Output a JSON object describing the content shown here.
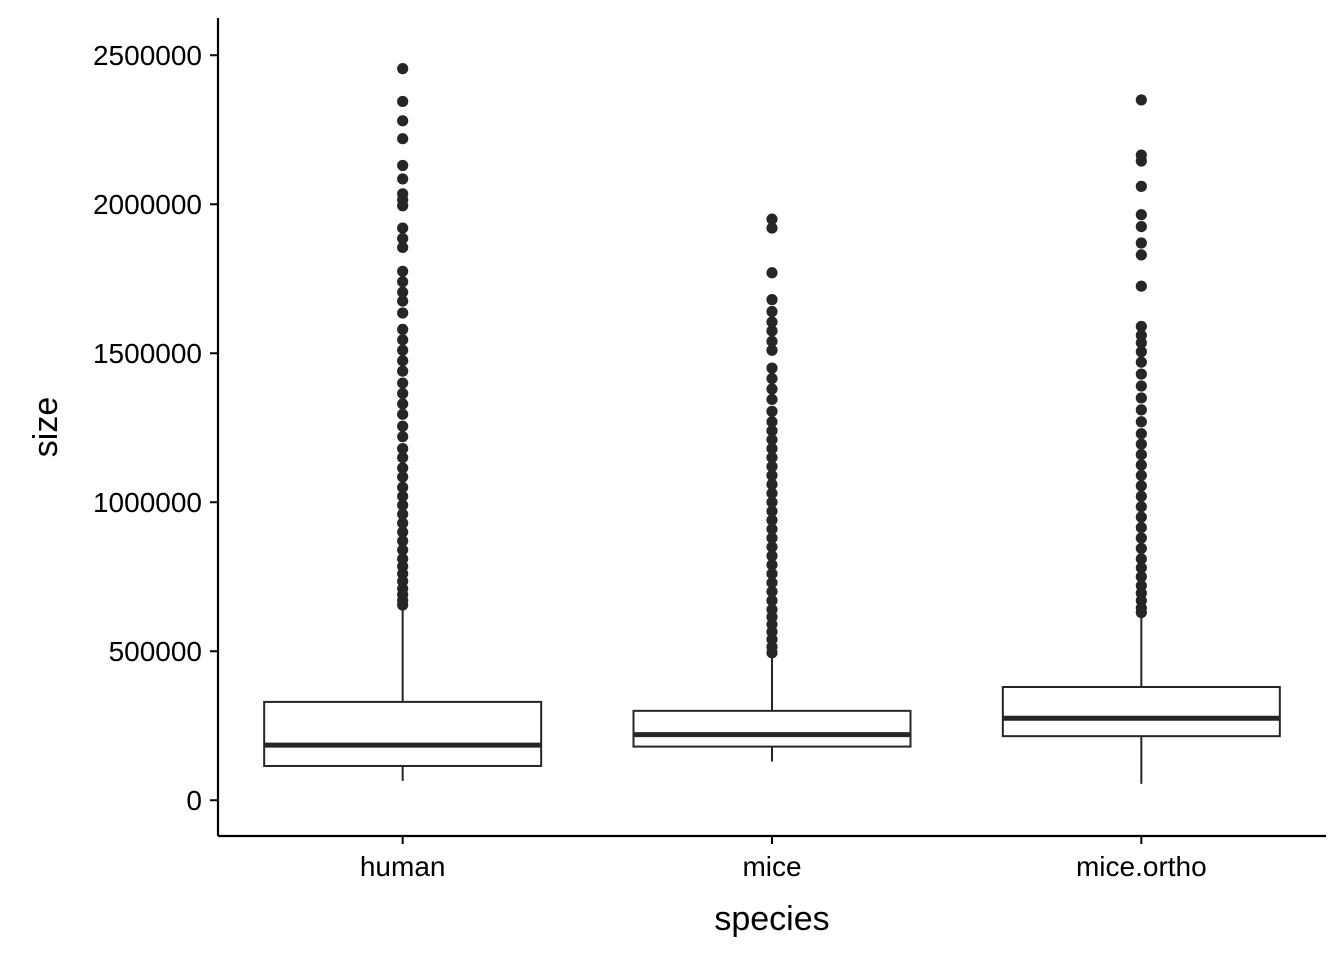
{
  "chart_data": {
    "type": "boxplot",
    "xlabel": "species",
    "ylabel": "size",
    "ylim": [
      -120000,
      2625000
    ],
    "yticks": [
      0,
      500000,
      1000000,
      1500000,
      2000000,
      2500000
    ],
    "ytick_labels": [
      "0",
      "500000",
      "1000000",
      "1500000",
      "2000000",
      "2500000"
    ],
    "categories": [
      "human",
      "mice",
      "mice.ortho"
    ],
    "grid": false,
    "legend": "none",
    "colors": {
      "box_fill": "#ffffff",
      "line": "#262626",
      "point": "#262626"
    },
    "boxes": [
      {
        "category": "human",
        "whisker_low": 65000,
        "q1": 115000,
        "median": 185000,
        "q3": 330000,
        "whisker_high": 645000,
        "outliers": [
          2455000,
          2345000,
          2280000,
          2220000,
          2130000,
          2085000,
          2035000,
          2015000,
          1995000,
          1920000,
          1885000,
          1855000,
          1775000,
          1740000,
          1705000,
          1675000,
          1635000,
          1580000,
          1545000,
          1510000,
          1475000,
          1440000,
          1400000,
          1365000,
          1330000,
          1295000,
          1255000,
          1220000,
          1180000,
          1150000,
          1115000,
          1085000,
          1050000,
          1020000,
          990000,
          960000,
          930000,
          900000,
          870000,
          840000,
          810000,
          785000,
          760000,
          735000,
          710000,
          690000,
          670000,
          655000
        ]
      },
      {
        "category": "mice",
        "whisker_low": 130000,
        "q1": 180000,
        "median": 220000,
        "q3": 300000,
        "whisker_high": 485000,
        "outliers": [
          1950000,
          1920000,
          1770000,
          1680000,
          1640000,
          1605000,
          1575000,
          1540000,
          1510000,
          1450000,
          1415000,
          1380000,
          1345000,
          1305000,
          1270000,
          1240000,
          1210000,
          1180000,
          1150000,
          1120000,
          1090000,
          1060000,
          1030000,
          1000000,
          970000,
          940000,
          910000,
          880000,
          850000,
          820000,
          790000,
          760000,
          730000,
          700000,
          670000,
          640000,
          615000,
          590000,
          565000,
          540000,
          515000,
          495000
        ]
      },
      {
        "category": "mice.ortho",
        "whisker_low": 55000,
        "q1": 215000,
        "median": 275000,
        "q3": 380000,
        "whisker_high": 620000,
        "outliers": [
          2350000,
          2165000,
          2145000,
          2060000,
          1965000,
          1925000,
          1870000,
          1830000,
          1725000,
          1590000,
          1560000,
          1535000,
          1505000,
          1470000,
          1430000,
          1390000,
          1350000,
          1310000,
          1270000,
          1230000,
          1195000,
          1160000,
          1125000,
          1090000,
          1055000,
          1020000,
          985000,
          950000,
          915000,
          880000,
          845000,
          810000,
          780000,
          750000,
          720000,
          695000,
          670000,
          645000,
          630000
        ]
      }
    ]
  }
}
